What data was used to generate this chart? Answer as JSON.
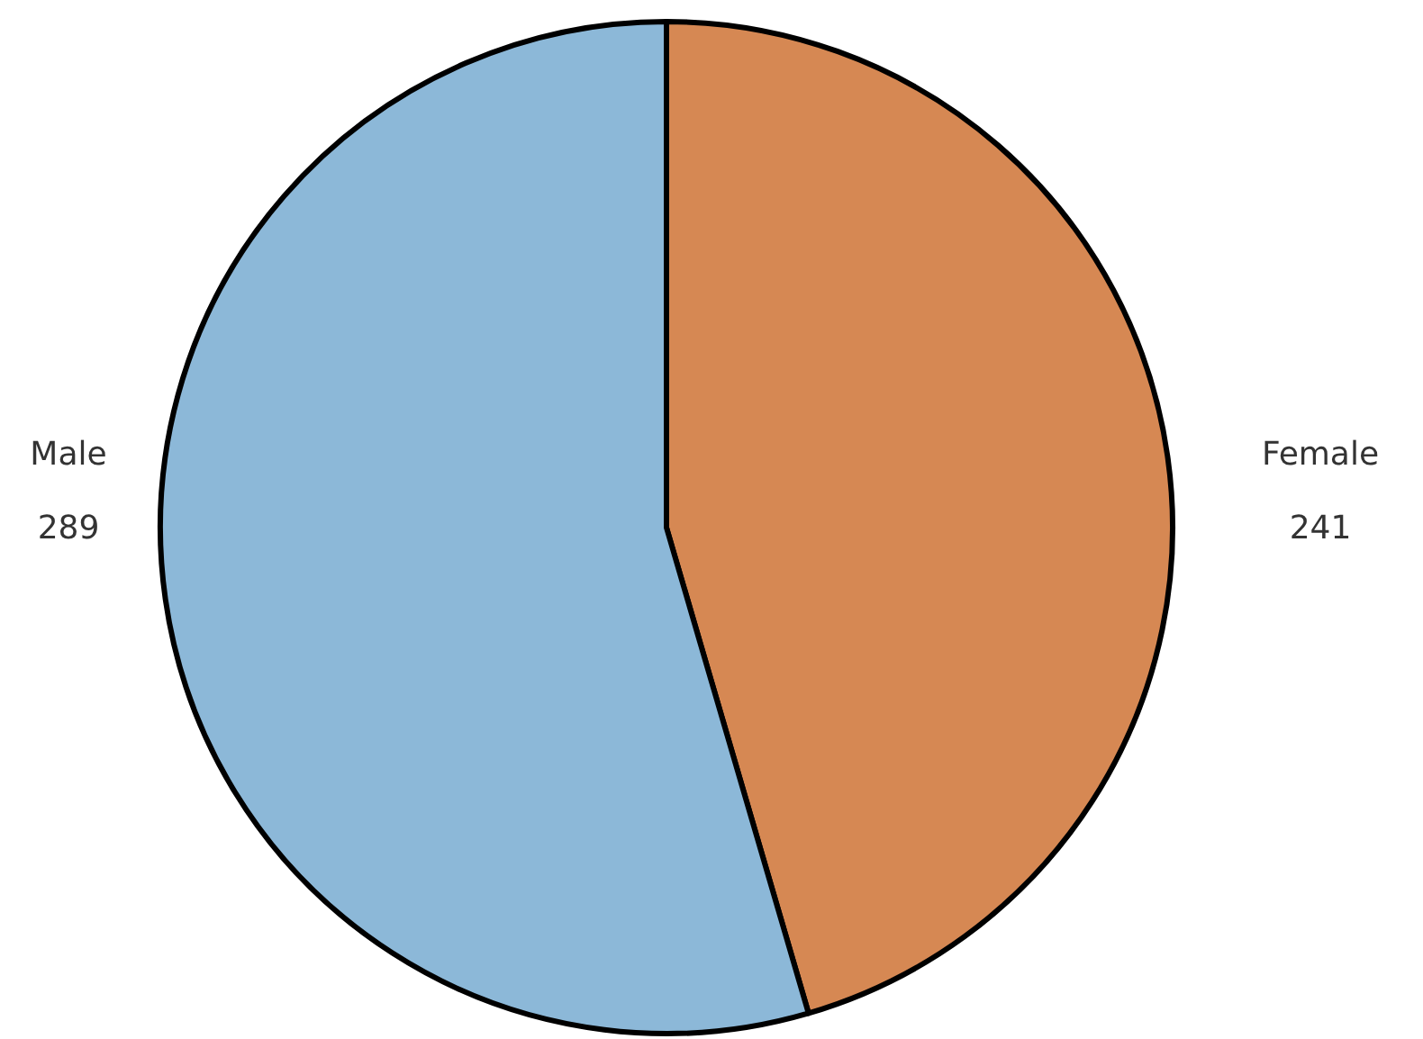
{
  "chart_data": {
    "type": "pie",
    "categories": [
      "Female",
      "Male"
    ],
    "values": [
      241,
      289
    ],
    "colors": [
      "#d68853",
      "#8cb8d8"
    ],
    "data_labels": true
  }
}
